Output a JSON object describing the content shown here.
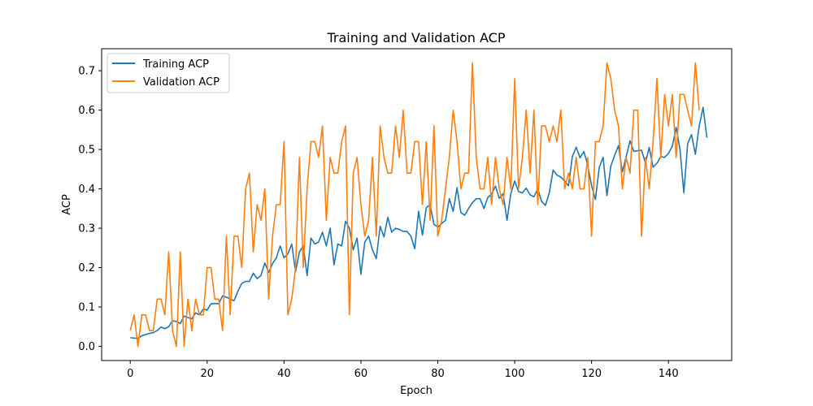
{
  "chart_data": {
    "type": "line",
    "title": "Training and Validation ACP",
    "xlabel": "Epoch",
    "ylabel": "ACP",
    "xlim": [
      -7.45,
      156.45
    ],
    "ylim": [
      -0.036,
      0.756
    ],
    "xticks": [
      0,
      20,
      40,
      60,
      80,
      100,
      120,
      140
    ],
    "yticks": [
      0.0,
      0.1,
      0.2,
      0.3,
      0.4,
      0.5,
      0.6,
      0.7
    ],
    "xtick_labels": [
      "0",
      "20",
      "40",
      "60",
      "80",
      "100",
      "120",
      "140"
    ],
    "ytick_labels": [
      "0.0",
      "0.1",
      "0.2",
      "0.3",
      "0.4",
      "0.5",
      "0.6",
      "0.7"
    ],
    "grid": false,
    "legend_position": "upper left",
    "series": [
      {
        "name": "Training ACP",
        "color": "#1f77b4",
        "values": [
          0.022,
          0.021,
          0.02,
          0.027,
          0.03,
          0.033,
          0.035,
          0.04,
          0.049,
          0.045,
          0.05,
          0.065,
          0.063,
          0.058,
          0.077,
          0.073,
          0.07,
          0.085,
          0.08,
          0.095,
          0.092,
          0.108,
          0.109,
          0.108,
          0.128,
          0.125,
          0.12,
          0.116,
          0.14,
          0.16,
          0.165,
          0.165,
          0.186,
          0.172,
          0.18,
          0.212,
          0.188,
          0.21,
          0.225,
          0.255,
          0.225,
          0.235,
          0.26,
          0.19,
          0.24,
          0.255,
          0.18,
          0.275,
          0.26,
          0.265,
          0.29,
          0.255,
          0.3,
          0.207,
          0.26,
          0.255,
          0.318,
          0.3,
          0.245,
          0.275,
          0.183,
          0.265,
          0.28,
          0.245,
          0.223,
          0.305,
          0.278,
          0.328,
          0.29,
          0.3,
          0.297,
          0.292,
          0.292,
          0.28,
          0.248,
          0.343,
          0.283,
          0.352,
          0.36,
          0.31,
          0.303,
          0.312,
          0.32,
          0.375,
          0.343,
          0.403,
          0.34,
          0.333,
          0.35,
          0.365,
          0.375,
          0.375,
          0.35,
          0.378,
          0.387,
          0.407,
          0.376,
          0.388,
          0.32,
          0.388,
          0.42,
          0.393,
          0.39,
          0.402,
          0.385,
          0.38,
          0.4,
          0.368,
          0.358,
          0.39,
          0.448,
          0.435,
          0.43,
          0.42,
          0.408,
          0.482,
          0.506,
          0.479,
          0.495,
          0.46,
          0.408,
          0.373,
          0.455,
          0.48,
          0.383,
          0.458,
          0.485,
          0.51,
          0.443,
          0.482,
          0.522,
          0.495,
          0.497,
          0.498,
          0.466,
          0.505,
          0.455,
          0.465,
          0.482,
          0.48,
          0.49,
          0.508,
          0.556,
          0.5,
          0.39,
          0.515,
          0.538,
          0.488,
          0.56,
          0.607,
          0.53
        ]
      },
      {
        "name": "Validation ACP",
        "color": "#ff7f0e",
        "values": [
          0.04,
          0.08,
          0.0,
          0.08,
          0.08,
          0.04,
          0.04,
          0.12,
          0.12,
          0.08,
          0.24,
          0.04,
          0.0,
          0.24,
          0.0,
          0.12,
          0.04,
          0.12,
          0.08,
          0.08,
          0.2,
          0.2,
          0.12,
          0.12,
          0.04,
          0.28,
          0.08,
          0.28,
          0.28,
          0.2,
          0.4,
          0.44,
          0.24,
          0.36,
          0.32,
          0.4,
          0.12,
          0.28,
          0.36,
          0.36,
          0.52,
          0.08,
          0.12,
          0.2,
          0.48,
          0.2,
          0.4,
          0.52,
          0.52,
          0.48,
          0.56,
          0.32,
          0.48,
          0.44,
          0.44,
          0.52,
          0.56,
          0.08,
          0.44,
          0.48,
          0.36,
          0.28,
          0.32,
          0.48,
          0.28,
          0.56,
          0.48,
          0.44,
          0.44,
          0.56,
          0.48,
          0.6,
          0.44,
          0.44,
          0.52,
          0.52,
          0.36,
          0.52,
          0.32,
          0.56,
          0.28,
          0.32,
          0.4,
          0.48,
          0.6,
          0.52,
          0.4,
          0.44,
          0.44,
          0.72,
          0.48,
          0.4,
          0.4,
          0.48,
          0.36,
          0.48,
          0.4,
          0.36,
          0.48,
          0.4,
          0.68,
          0.4,
          0.48,
          0.6,
          0.44,
          0.6,
          0.36,
          0.56,
          0.56,
          0.52,
          0.56,
          0.52,
          0.6,
          0.4,
          0.44,
          0.4,
          0.48,
          0.4,
          0.4,
          0.48,
          0.28,
          0.52,
          0.52,
          0.56,
          0.72,
          0.68,
          0.6,
          0.56,
          0.4,
          0.48,
          0.44,
          0.6,
          0.6,
          0.28,
          0.48,
          0.4,
          0.52,
          0.68,
          0.48,
          0.64,
          0.56,
          0.64,
          0.48,
          0.64,
          0.64,
          0.6,
          0.56,
          0.72,
          0.6
        ]
      }
    ]
  }
}
